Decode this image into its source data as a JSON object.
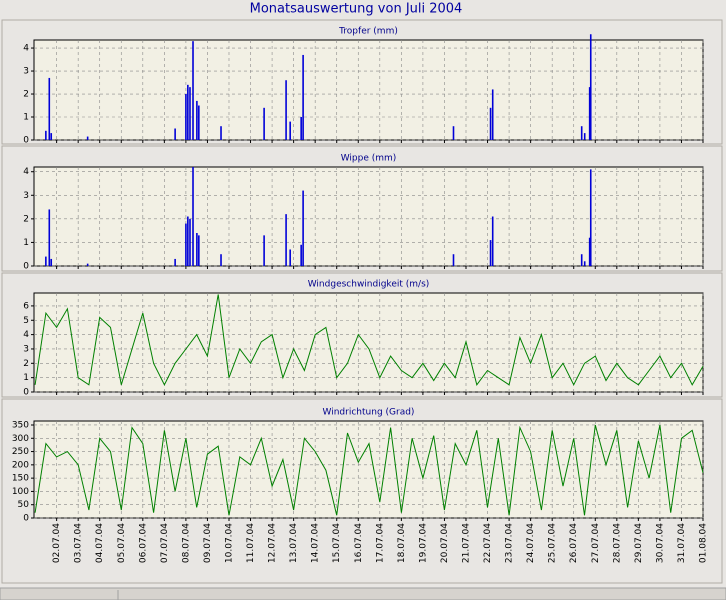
{
  "title": "Monatsauswertung von Juli 2004",
  "chart_data": [
    {
      "type": "bar",
      "title": "Tropfer (mm)",
      "color": "#0000d8",
      "x": [
        1.5,
        1.66,
        1.75,
        3.44,
        7.5,
        8.0,
        8.09,
        8.19,
        8.33,
        8.51,
        8.6,
        9.63,
        11.63,
        12.65,
        12.84,
        13.35,
        13.44,
        20.42,
        22.14,
        22.24,
        26.37,
        26.51,
        26.74,
        26.79
      ],
      "values": [
        0.4,
        2.7,
        0.3,
        0.15,
        0.5,
        2.0,
        2.4,
        2.3,
        4.3,
        1.7,
        1.5,
        0.6,
        1.4,
        2.6,
        0.8,
        1.0,
        3.7,
        0.6,
        1.4,
        2.2,
        0.6,
        0.3,
        2.3,
        4.6
      ],
      "xlim": [
        0.95,
        32
      ],
      "xticks": [
        2,
        3,
        4,
        5,
        6,
        7,
        8,
        9,
        10,
        11,
        12,
        13,
        14,
        15,
        16,
        17,
        18,
        19,
        20,
        21,
        22,
        23,
        24,
        25,
        26,
        27,
        28,
        29,
        30,
        31,
        32
      ],
      "ylim": [
        0,
        4.35
      ],
      "yticks": [
        0,
        1,
        2,
        3,
        4
      ]
    },
    {
      "type": "bar",
      "title": "Wippe (mm)",
      "color": "#0000d8",
      "x": [
        1.5,
        1.66,
        1.75,
        3.44,
        7.5,
        8.0,
        8.09,
        8.19,
        8.33,
        8.51,
        8.6,
        9.63,
        11.63,
        12.65,
        12.84,
        13.35,
        13.44,
        20.42,
        22.14,
        22.24,
        26.37,
        26.51,
        26.74,
        26.79
      ],
      "values": [
        0.4,
        2.4,
        0.3,
        0.1,
        0.3,
        1.8,
        2.1,
        2.0,
        4.2,
        1.4,
        1.3,
        0.5,
        1.3,
        2.2,
        0.7,
        0.9,
        3.2,
        0.5,
        1.1,
        2.1,
        0.5,
        0.2,
        1.2,
        4.1
      ],
      "xlim": [
        0.95,
        32
      ],
      "xticks": [
        2,
        3,
        4,
        5,
        6,
        7,
        8,
        9,
        10,
        11,
        12,
        13,
        14,
        15,
        16,
        17,
        18,
        19,
        20,
        21,
        22,
        23,
        24,
        25,
        26,
        27,
        28,
        29,
        30,
        31,
        32
      ],
      "ylim": [
        0,
        4.2
      ],
      "yticks": [
        0,
        1,
        2,
        3,
        4
      ]
    },
    {
      "type": "line",
      "title": "Windgeschwindigkeit (m/s)",
      "color": "#008000",
      "x": [
        1,
        1.5,
        2,
        2.5,
        3,
        3.5,
        4,
        4.5,
        5,
        5.5,
        6,
        6.5,
        7,
        7.5,
        8,
        8.5,
        9,
        9.5,
        10,
        10.5,
        11,
        11.5,
        12,
        12.5,
        13,
        13.5,
        14,
        14.5,
        15,
        15.5,
        16,
        16.5,
        17,
        17.5,
        18,
        18.5,
        19,
        19.5,
        20,
        20.5,
        21,
        21.5,
        22,
        22.5,
        23,
        23.5,
        24,
        24.5,
        25,
        25.5,
        26,
        26.5,
        27,
        27.5,
        28,
        28.5,
        29,
        29.5,
        30,
        30.5,
        31,
        31.5,
        32
      ],
      "values": [
        0.5,
        5.5,
        4.5,
        5.8,
        1,
        0.5,
        5.2,
        4.5,
        0.5,
        3,
        5.5,
        2,
        0.5,
        2,
        3,
        4,
        2.5,
        6.8,
        1,
        3,
        2,
        3.5,
        4,
        1,
        3,
        1.5,
        4,
        4.5,
        1,
        2,
        4,
        3,
        1,
        2.5,
        1.5,
        1,
        2,
        0.8,
        2,
        1,
        3.5,
        0.5,
        1.5,
        1,
        0.5,
        3.8,
        2,
        4,
        1,
        2,
        0.5,
        2,
        2.5,
        0.8,
        2,
        1,
        0.5,
        1.5,
        2.5,
        1,
        2,
        0.5,
        1.8
      ],
      "xlim": [
        0.95,
        32
      ],
      "xticks": [
        2,
        3,
        4,
        5,
        6,
        7,
        8,
        9,
        10,
        11,
        12,
        13,
        14,
        15,
        16,
        17,
        18,
        19,
        20,
        21,
        22,
        23,
        24,
        25,
        26,
        27,
        28,
        29,
        30,
        31,
        32
      ],
      "ylim": [
        0,
        6.9
      ],
      "yticks": [
        0,
        1,
        2,
        3,
        4,
        5,
        6
      ]
    },
    {
      "type": "line",
      "title": "Windrichtung (Grad)",
      "color": "#008000",
      "x": [
        1,
        1.5,
        2,
        2.5,
        3,
        3.5,
        4,
        4.5,
        5,
        5.5,
        6,
        6.5,
        7,
        7.5,
        8,
        8.5,
        9,
        9.5,
        10,
        10.5,
        11,
        11.5,
        12,
        12.5,
        13,
        13.5,
        14,
        14.5,
        15,
        15.5,
        16,
        16.5,
        17,
        17.5,
        18,
        18.5,
        19,
        19.5,
        20,
        20.5,
        21,
        21.5,
        22,
        22.5,
        23,
        23.5,
        24,
        24.5,
        25,
        25.5,
        26,
        26.5,
        27,
        27.5,
        28,
        28.5,
        29,
        29.5,
        30,
        30.5,
        31,
        31.5,
        32
      ],
      "values": [
        20,
        280,
        230,
        250,
        200,
        30,
        300,
        250,
        30,
        340,
        280,
        20,
        330,
        100,
        300,
        40,
        240,
        270,
        10,
        230,
        200,
        300,
        120,
        220,
        30,
        300,
        250,
        180,
        10,
        320,
        210,
        280,
        60,
        340,
        20,
        300,
        150,
        310,
        30,
        280,
        200,
        330,
        40,
        300,
        10,
        340,
        250,
        30,
        330,
        120,
        300,
        10,
        350,
        200,
        330,
        40,
        290,
        150,
        350,
        20,
        300,
        330,
        170
      ],
      "xlim": [
        0.95,
        32
      ],
      "xticks": [
        {
          "value": 2,
          "label": "02.07.04"
        },
        {
          "value": 3,
          "label": "03.07.04"
        },
        {
          "value": 4,
          "label": "04.07.04"
        },
        {
          "value": 5,
          "label": "05.07.04"
        },
        {
          "value": 6,
          "label": "06.07.04"
        },
        {
          "value": 7,
          "label": "07.07.04"
        },
        {
          "value": 8,
          "label": "08.07.04"
        },
        {
          "value": 9,
          "label": "09.07.04"
        },
        {
          "value": 10,
          "label": "10.07.04"
        },
        {
          "value": 11,
          "label": "11.07.04"
        },
        {
          "value": 12,
          "label": "12.07.04"
        },
        {
          "value": 13,
          "label": "13.07.04"
        },
        {
          "value": 14,
          "label": "14.07.04"
        },
        {
          "value": 15,
          "label": "15.07.04"
        },
        {
          "value": 16,
          "label": "16.07.04"
        },
        {
          "value": 17,
          "label": "17.07.04"
        },
        {
          "value": 18,
          "label": "18.07.04"
        },
        {
          "value": 19,
          "label": "19.07.04"
        },
        {
          "value": 20,
          "label": "20.07.04"
        },
        {
          "value": 21,
          "label": "21.07.04"
        },
        {
          "value": 22,
          "label": "22.07.04"
        },
        {
          "value": 23,
          "label": "23.07.04"
        },
        {
          "value": 24,
          "label": "24.07.04"
        },
        {
          "value": 25,
          "label": "25.07.04"
        },
        {
          "value": 26,
          "label": "26.07.04"
        },
        {
          "value": 27,
          "label": "27.07.04"
        },
        {
          "value": 28,
          "label": "28.07.04"
        },
        {
          "value": 29,
          "label": "29.07.04"
        },
        {
          "value": 30,
          "label": "30.07.04"
        },
        {
          "value": 31,
          "label": "31.07.04"
        },
        {
          "value": 32,
          "label": "01.08.04"
        }
      ],
      "ylim": [
        0,
        365
      ],
      "yticks": [
        0,
        50,
        100,
        150,
        200,
        250,
        300,
        350
      ]
    }
  ]
}
